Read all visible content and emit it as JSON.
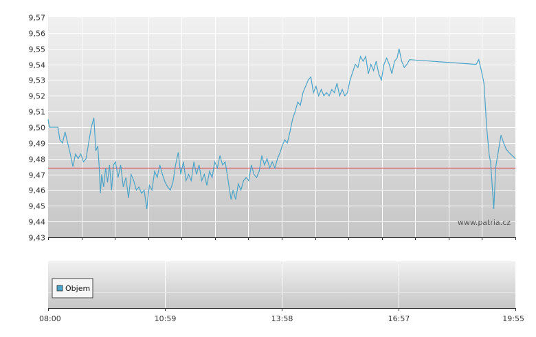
{
  "chart_data": {
    "type": "line",
    "price": {
      "ylim": [
        9.43,
        9.57
      ],
      "y_ticks": [
        "9,57",
        "9,56",
        "9,55",
        "9,54",
        "9,53",
        "9,52",
        "9,51",
        "9,50",
        "9,49",
        "9,48",
        "9,47",
        "9,46",
        "9,45",
        "9,44",
        "9,43"
      ],
      "reference_line": 9.474,
      "series": [
        {
          "color": "#4aa3c8",
          "points": [
            [
              "08:00",
              9.505
            ],
            [
              "08:02",
              9.5
            ],
            [
              "08:05",
              9.5
            ],
            [
              "08:10",
              9.5
            ],
            [
              "08:15",
              9.5
            ],
            [
              "08:18",
              9.492
            ],
            [
              "08:22",
              9.49
            ],
            [
              "08:26",
              9.497
            ],
            [
              "08:30",
              9.49
            ],
            [
              "08:34",
              9.483
            ],
            [
              "08:38",
              9.475
            ],
            [
              "08:42",
              9.483
            ],
            [
              "08:46",
              9.48
            ],
            [
              "08:50",
              9.483
            ],
            [
              "08:54",
              9.478
            ],
            [
              "08:58",
              9.48
            ],
            [
              "09:02",
              9.49
            ],
            [
              "09:06",
              9.5
            ],
            [
              "09:10",
              9.506
            ],
            [
              "09:13",
              9.485
            ],
            [
              "09:16",
              9.488
            ],
            [
              "09:18",
              9.476
            ],
            [
              "09:20",
              9.458
            ],
            [
              "09:22",
              9.47
            ],
            [
              "09:25",
              9.462
            ],
            [
              "09:28",
              9.474
            ],
            [
              "09:31",
              9.465
            ],
            [
              "09:34",
              9.476
            ],
            [
              "09:37",
              9.46
            ],
            [
              "09:40",
              9.476
            ],
            [
              "09:43",
              9.478
            ],
            [
              "09:47",
              9.468
            ],
            [
              "09:51",
              9.476
            ],
            [
              "09:55",
              9.462
            ],
            [
              "09:59",
              9.468
            ],
            [
              "10:03",
              9.455
            ],
            [
              "10:07",
              9.47
            ],
            [
              "10:11",
              9.466
            ],
            [
              "10:15",
              9.46
            ],
            [
              "10:19",
              9.462
            ],
            [
              "10:23",
              9.458
            ],
            [
              "10:27",
              9.46
            ],
            [
              "10:31",
              9.448
            ],
            [
              "10:35",
              9.463
            ],
            [
              "10:39",
              9.46
            ],
            [
              "10:43",
              9.472
            ],
            [
              "10:47",
              9.468
            ],
            [
              "10:51",
              9.476
            ],
            [
              "10:55",
              9.47
            ],
            [
              "10:59",
              9.465
            ],
            [
              "11:03",
              9.462
            ],
            [
              "11:07",
              9.46
            ],
            [
              "11:11",
              9.465
            ],
            [
              "11:15",
              9.476
            ],
            [
              "11:19",
              9.484
            ],
            [
              "11:23",
              9.47
            ],
            [
              "11:27",
              9.478
            ],
            [
              "11:31",
              9.466
            ],
            [
              "11:35",
              9.47
            ],
            [
              "11:39",
              9.466
            ],
            [
              "11:43",
              9.478
            ],
            [
              "11:47",
              9.47
            ],
            [
              "11:51",
              9.476
            ],
            [
              "11:55",
              9.466
            ],
            [
              "11:59",
              9.47
            ],
            [
              "12:03",
              9.463
            ],
            [
              "12:07",
              9.472
            ],
            [
              "12:11",
              9.468
            ],
            [
              "12:15",
              9.478
            ],
            [
              "12:19",
              9.474
            ],
            [
              "12:23",
              9.482
            ],
            [
              "12:27",
              9.476
            ],
            [
              "12:31",
              9.478
            ],
            [
              "12:34",
              9.47
            ],
            [
              "12:37",
              9.462
            ],
            [
              "12:40",
              9.454
            ],
            [
              "12:43",
              9.46
            ],
            [
              "12:47",
              9.454
            ],
            [
              "12:51",
              9.464
            ],
            [
              "12:55",
              9.46
            ],
            [
              "12:59",
              9.466
            ],
            [
              "13:03",
              9.468
            ],
            [
              "13:07",
              9.466
            ],
            [
              "13:11",
              9.476
            ],
            [
              "13:15",
              9.47
            ],
            [
              "13:19",
              9.468
            ],
            [
              "13:23",
              9.472
            ],
            [
              "13:27",
              9.482
            ],
            [
              "13:31",
              9.476
            ],
            [
              "13:35",
              9.48
            ],
            [
              "13:39",
              9.474
            ],
            [
              "13:43",
              9.478
            ],
            [
              "13:47",
              9.474
            ],
            [
              "13:51",
              9.48
            ],
            [
              "13:55",
              9.484
            ],
            [
              "13:58",
              9.488
            ],
            [
              "14:02",
              9.492
            ],
            [
              "14:06",
              9.49
            ],
            [
              "14:10",
              9.497
            ],
            [
              "14:14",
              9.505
            ],
            [
              "14:18",
              9.51
            ],
            [
              "14:22",
              9.516
            ],
            [
              "14:26",
              9.514
            ],
            [
              "14:30",
              9.522
            ],
            [
              "14:34",
              9.526
            ],
            [
              "14:38",
              9.53
            ],
            [
              "14:42",
              9.532
            ],
            [
              "14:46",
              9.522
            ],
            [
              "14:50",
              9.526
            ],
            [
              "14:54",
              9.52
            ],
            [
              "14:58",
              9.524
            ],
            [
              "15:02",
              9.52
            ],
            [
              "15:06",
              9.522
            ],
            [
              "15:10",
              9.52
            ],
            [
              "15:14",
              9.524
            ],
            [
              "15:18",
              9.522
            ],
            [
              "15:22",
              9.528
            ],
            [
              "15:26",
              9.52
            ],
            [
              "15:30",
              9.524
            ],
            [
              "15:34",
              9.52
            ],
            [
              "15:38",
              9.522
            ],
            [
              "15:42",
              9.53
            ],
            [
              "15:46",
              9.535
            ],
            [
              "15:50",
              9.54
            ],
            [
              "15:54",
              9.538
            ],
            [
              "15:58",
              9.545
            ],
            [
              "16:02",
              9.542
            ],
            [
              "16:06",
              9.545
            ],
            [
              "16:10",
              9.534
            ],
            [
              "16:14",
              9.54
            ],
            [
              "16:18",
              9.536
            ],
            [
              "16:22",
              9.542
            ],
            [
              "16:26",
              9.534
            ],
            [
              "16:30",
              9.53
            ],
            [
              "16:34",
              9.54
            ],
            [
              "16:38",
              9.544
            ],
            [
              "16:42",
              9.54
            ],
            [
              "16:46",
              9.534
            ],
            [
              "16:50",
              9.542
            ],
            [
              "16:54",
              9.544
            ],
            [
              "16:57",
              9.55
            ],
            [
              "17:01",
              9.542
            ],
            [
              "17:05",
              9.538
            ],
            [
              "17:09",
              9.54
            ],
            [
              "17:13",
              9.543
            ],
            [
              "18:55",
              9.54
            ],
            [
              "18:59",
              9.543
            ],
            [
              "19:03",
              9.536
            ],
            [
              "19:07",
              9.528
            ],
            [
              "19:11",
              9.5
            ],
            [
              "19:15",
              9.482
            ],
            [
              "19:17",
              9.478
            ],
            [
              "19:20",
              9.46
            ],
            [
              "19:22",
              9.448
            ],
            [
              "19:25",
              9.475
            ],
            [
              "19:29",
              9.485
            ],
            [
              "19:33",
              9.495
            ],
            [
              "19:37",
              9.49
            ],
            [
              "19:41",
              9.486
            ],
            [
              "19:45",
              9.484
            ],
            [
              "19:50",
              9.482
            ],
            [
              "19:55",
              9.48
            ]
          ]
        }
      ]
    },
    "volume": {
      "x_ticks": [
        "08:00",
        "10:59",
        "13:58",
        "16:57",
        "19:55"
      ]
    }
  },
  "legend": {
    "label": "Objem",
    "color": "#4aa3c8"
  },
  "watermark": "www.patria.cz"
}
